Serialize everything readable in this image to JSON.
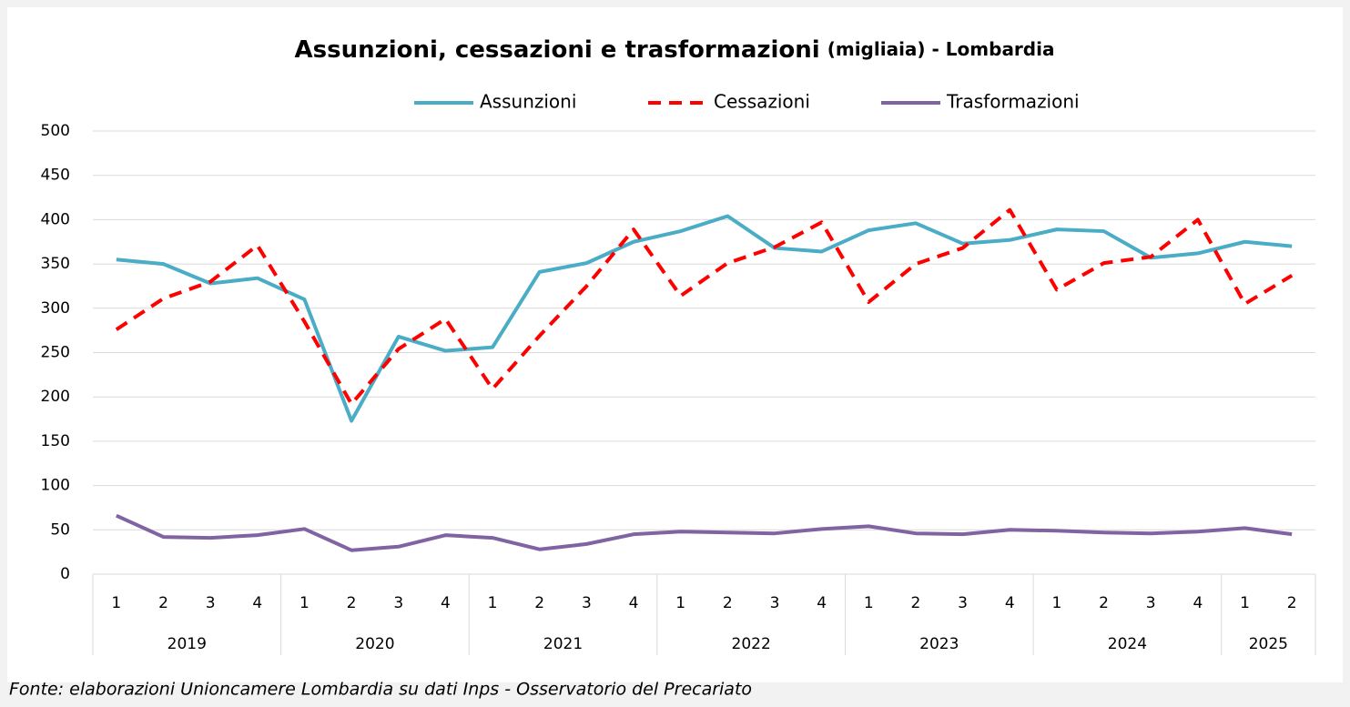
{
  "chart_data": {
    "type": "line",
    "title": "Assunzioni, cessazioni e trasformazioni",
    "subtitle": "(migliaia) - Lombardia",
    "source": "Fonte: elaborazioni Unioncamere Lombardia su dati Inps - Osservatorio del Precariato",
    "groups": [
      {
        "label": "2019",
        "categories": [
          "1",
          "2",
          "3",
          "4"
        ]
      },
      {
        "label": "2020",
        "categories": [
          "1",
          "2",
          "3",
          "4"
        ]
      },
      {
        "label": "2021",
        "categories": [
          "1",
          "2",
          "3",
          "4"
        ]
      },
      {
        "label": "2022",
        "categories": [
          "1",
          "2",
          "3",
          "4"
        ]
      },
      {
        "label": "2023",
        "categories": [
          "1",
          "2",
          "3",
          "4"
        ]
      },
      {
        "label": "2024",
        "categories": [
          "1",
          "2",
          "3",
          "4"
        ]
      },
      {
        "label": "2025",
        "categories": [
          "1",
          "2"
        ]
      }
    ],
    "series": [
      {
        "name": "Assunzioni",
        "color": "#4bacc6",
        "dash": false,
        "values": [
          355,
          350,
          328,
          334,
          310,
          173,
          268,
          252,
          256,
          341,
          351,
          375,
          387,
          404,
          368,
          364,
          388,
          396,
          373,
          377,
          389,
          387,
          357,
          362,
          375,
          370
        ]
      },
      {
        "name": "Cessazioni",
        "color": "#ff0000",
        "dash": true,
        "values": [
          276,
          311,
          330,
          371,
          285,
          192,
          254,
          288,
          209,
          269,
          325,
          389,
          314,
          351,
          369,
          397,
          307,
          350,
          368,
          411,
          321,
          351,
          358,
          400,
          305,
          337
        ]
      },
      {
        "name": "Trasformazioni",
        "color": "#8064a2",
        "dash": false,
        "values": [
          66,
          42,
          41,
          44,
          51,
          27,
          31,
          44,
          41,
          28,
          34,
          45,
          48,
          47,
          46,
          51,
          54,
          46,
          45,
          50,
          49,
          47,
          46,
          48,
          52,
          45
        ]
      }
    ],
    "ylim": [
      0,
      500
    ],
    "yticks": [
      0,
      50,
      100,
      150,
      200,
      250,
      300,
      350,
      400,
      450,
      500
    ],
    "grid": true,
    "legend": "top"
  }
}
